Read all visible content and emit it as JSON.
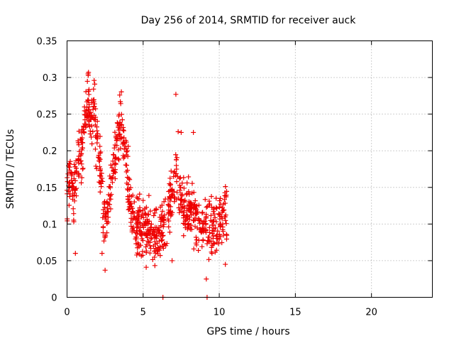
{
  "chart_data": {
    "type": "scatter",
    "title": "Day 256 of 2014, SRMTID for receiver auck",
    "xlabel": "GPS time / hours",
    "ylabel": "SRMTID / TECUs",
    "xlim": [
      0,
      24
    ],
    "ylim": [
      0,
      0.35
    ],
    "xticks": [
      0,
      5,
      10,
      15,
      20
    ],
    "xtick_labels": [
      "0",
      "5",
      "10",
      "15",
      "20"
    ],
    "yticks": [
      0,
      0.05,
      0.1,
      0.15,
      0.2,
      0.25,
      0.3,
      0.35
    ],
    "ytick_labels": [
      "0",
      "0.05",
      "0.1",
      "0.15",
      "0.2",
      "0.25",
      "0.3",
      "0.35"
    ],
    "grid": true,
    "marker": "+",
    "color": "#ee0000",
    "series": [
      {
        "name": "SRMTID",
        "anchors": [
          [
            0.0,
            0.14
          ],
          [
            0.2,
            0.17
          ],
          [
            0.4,
            0.13
          ],
          [
            0.6,
            0.17
          ],
          [
            0.8,
            0.19
          ],
          [
            1.0,
            0.2
          ],
          [
            1.1,
            0.22
          ],
          [
            1.3,
            0.26
          ],
          [
            1.45,
            0.25
          ],
          [
            1.6,
            0.23
          ],
          [
            1.75,
            0.26
          ],
          [
            1.9,
            0.22
          ],
          [
            2.05,
            0.2
          ],
          [
            2.2,
            0.17
          ],
          [
            2.35,
            0.13
          ],
          [
            2.5,
            0.1
          ],
          [
            2.7,
            0.12
          ],
          [
            2.9,
            0.15
          ],
          [
            3.1,
            0.18
          ],
          [
            3.3,
            0.22
          ],
          [
            3.5,
            0.24
          ],
          [
            3.65,
            0.23
          ],
          [
            3.8,
            0.2
          ],
          [
            3.95,
            0.17
          ],
          [
            4.1,
            0.14
          ],
          [
            4.3,
            0.11
          ],
          [
            4.5,
            0.1
          ],
          [
            4.8,
            0.1
          ],
          [
            5.0,
            0.095
          ],
          [
            5.3,
            0.09
          ],
          [
            5.6,
            0.085
          ],
          [
            5.9,
            0.085
          ],
          [
            6.2,
            0.09
          ],
          [
            6.5,
            0.1
          ],
          [
            6.8,
            0.14
          ],
          [
            7.0,
            0.17
          ],
          [
            7.2,
            0.16
          ],
          [
            7.4,
            0.14
          ],
          [
            7.6,
            0.13
          ],
          [
            7.8,
            0.12
          ],
          [
            8.0,
            0.115
          ],
          [
            8.3,
            0.11
          ],
          [
            8.6,
            0.105
          ],
          [
            8.9,
            0.1
          ],
          [
            9.2,
            0.095
          ],
          [
            9.5,
            0.09
          ],
          [
            9.8,
            0.1
          ],
          [
            10.1,
            0.115
          ],
          [
            10.3,
            0.12
          ],
          [
            10.5,
            0.11
          ]
        ],
        "spread": 0.035,
        "count": 900,
        "outliers": [
          [
            1.38,
            0.305
          ],
          [
            1.41,
            0.307
          ],
          [
            1.78,
            0.296
          ],
          [
            1.82,
            0.291
          ],
          [
            2.5,
            0.037
          ],
          [
            3.46,
            0.276
          ],
          [
            7.15,
            0.277
          ],
          [
            7.3,
            0.226
          ],
          [
            7.5,
            0.225
          ],
          [
            8.3,
            0.225
          ],
          [
            9.15,
            0.025
          ],
          [
            6.3,
            0.0
          ],
          [
            9.2,
            0.0
          ],
          [
            0.55,
            0.06
          ],
          [
            5.2,
            0.041
          ],
          [
            10.4,
            0.045
          ],
          [
            6.9,
            0.05
          ],
          [
            2.3,
            0.06
          ]
        ]
      }
    ]
  }
}
